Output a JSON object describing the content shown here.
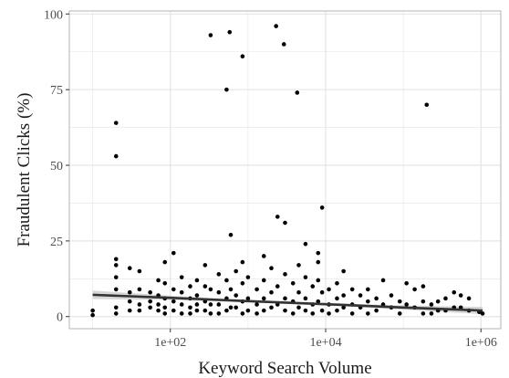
{
  "chart_data": {
    "type": "scatter",
    "title": "",
    "xlabel": "Keyword Search Volume",
    "ylabel": "Fraudulent Clicks (%)",
    "x_scale": "log10",
    "xlim": [
      5,
      1800000
    ],
    "ylim": [
      -4,
      101
    ],
    "x_ticks": [
      100,
      10000,
      1000000
    ],
    "x_tick_labels": [
      "1e+02",
      "1e+04",
      "1e+06"
    ],
    "y_ticks": [
      0,
      25,
      50,
      75,
      100
    ],
    "y_tick_labels": [
      "0",
      "25",
      "50",
      "75",
      "100"
    ],
    "grid": true,
    "legend": "none",
    "colors": {
      "points": "#000000",
      "trend": "#333333",
      "band": "#bdbdbd",
      "grid": "#e5e5e5",
      "panel_border": "#b3b3b3"
    },
    "series": [
      {
        "values": [
          {
            "x": 10,
            "y": 2
          },
          {
            "x": 10,
            "y": 0.5
          },
          {
            "x": 20,
            "y": 64
          },
          {
            "x": 20,
            "y": 53
          },
          {
            "x": 20,
            "y": 19
          },
          {
            "x": 20,
            "y": 17
          },
          {
            "x": 20,
            "y": 13
          },
          {
            "x": 20,
            "y": 9
          },
          {
            "x": 20,
            "y": 3
          },
          {
            "x": 20,
            "y": 1
          },
          {
            "x": 30,
            "y": 16
          },
          {
            "x": 30,
            "y": 8
          },
          {
            "x": 30,
            "y": 5
          },
          {
            "x": 30,
            "y": 2
          },
          {
            "x": 40,
            "y": 15
          },
          {
            "x": 40,
            "y": 9
          },
          {
            "x": 40,
            "y": 4
          },
          {
            "x": 40,
            "y": 2
          },
          {
            "x": 55,
            "y": 8
          },
          {
            "x": 55,
            "y": 5
          },
          {
            "x": 55,
            "y": 3
          },
          {
            "x": 70,
            "y": 12
          },
          {
            "x": 70,
            "y": 7
          },
          {
            "x": 70,
            "y": 4
          },
          {
            "x": 70,
            "y": 2
          },
          {
            "x": 85,
            "y": 18
          },
          {
            "x": 85,
            "y": 11
          },
          {
            "x": 85,
            "y": 6
          },
          {
            "x": 85,
            "y": 3
          },
          {
            "x": 85,
            "y": 1
          },
          {
            "x": 110,
            "y": 21
          },
          {
            "x": 110,
            "y": 9
          },
          {
            "x": 110,
            "y": 5
          },
          {
            "x": 110,
            "y": 2
          },
          {
            "x": 140,
            "y": 13
          },
          {
            "x": 140,
            "y": 8
          },
          {
            "x": 140,
            "y": 4
          },
          {
            "x": 140,
            "y": 1
          },
          {
            "x": 180,
            "y": 10
          },
          {
            "x": 180,
            "y": 6
          },
          {
            "x": 180,
            "y": 3
          },
          {
            "x": 180,
            "y": 1
          },
          {
            "x": 220,
            "y": 12
          },
          {
            "x": 220,
            "y": 7
          },
          {
            "x": 220,
            "y": 4
          },
          {
            "x": 220,
            "y": 2
          },
          {
            "x": 280,
            "y": 17
          },
          {
            "x": 280,
            "y": 10
          },
          {
            "x": 280,
            "y": 5
          },
          {
            "x": 280,
            "y": 2
          },
          {
            "x": 330,
            "y": 93
          },
          {
            "x": 330,
            "y": 9
          },
          {
            "x": 330,
            "y": 4
          },
          {
            "x": 330,
            "y": 1
          },
          {
            "x": 420,
            "y": 14
          },
          {
            "x": 420,
            "y": 8
          },
          {
            "x": 420,
            "y": 4
          },
          {
            "x": 420,
            "y": 1
          },
          {
            "x": 530,
            "y": 75
          },
          {
            "x": 530,
            "y": 12
          },
          {
            "x": 530,
            "y": 6
          },
          {
            "x": 530,
            "y": 2
          },
          {
            "x": 580,
            "y": 94
          },
          {
            "x": 600,
            "y": 27
          },
          {
            "x": 600,
            "y": 9
          },
          {
            "x": 600,
            "y": 3
          },
          {
            "x": 700,
            "y": 15
          },
          {
            "x": 700,
            "y": 7
          },
          {
            "x": 700,
            "y": 3
          },
          {
            "x": 850,
            "y": 86
          },
          {
            "x": 850,
            "y": 18
          },
          {
            "x": 850,
            "y": 11
          },
          {
            "x": 850,
            "y": 5
          },
          {
            "x": 850,
            "y": 1
          },
          {
            "x": 1000,
            "y": 13
          },
          {
            "x": 1000,
            "y": 6
          },
          {
            "x": 1000,
            "y": 2
          },
          {
            "x": 1300,
            "y": 9
          },
          {
            "x": 1300,
            "y": 4
          },
          {
            "x": 1300,
            "y": 1
          },
          {
            "x": 1600,
            "y": 20
          },
          {
            "x": 1600,
            "y": 12
          },
          {
            "x": 1600,
            "y": 6
          },
          {
            "x": 1600,
            "y": 2
          },
          {
            "x": 2000,
            "y": 16
          },
          {
            "x": 2000,
            "y": 8
          },
          {
            "x": 2000,
            "y": 3
          },
          {
            "x": 2300,
            "y": 96
          },
          {
            "x": 2400,
            "y": 33
          },
          {
            "x": 2400,
            "y": 10
          },
          {
            "x": 2400,
            "y": 4
          },
          {
            "x": 2900,
            "y": 90
          },
          {
            "x": 3000,
            "y": 31
          },
          {
            "x": 3000,
            "y": 14
          },
          {
            "x": 3000,
            "y": 6
          },
          {
            "x": 3000,
            "y": 2
          },
          {
            "x": 3800,
            "y": 11
          },
          {
            "x": 3800,
            "y": 5
          },
          {
            "x": 3800,
            "y": 1
          },
          {
            "x": 4300,
            "y": 74
          },
          {
            "x": 4500,
            "y": 17
          },
          {
            "x": 4500,
            "y": 8
          },
          {
            "x": 4500,
            "y": 3
          },
          {
            "x": 5500,
            "y": 24
          },
          {
            "x": 5500,
            "y": 13
          },
          {
            "x": 5500,
            "y": 6
          },
          {
            "x": 5500,
            "y": 2
          },
          {
            "x": 6800,
            "y": 10
          },
          {
            "x": 6800,
            "y": 4
          },
          {
            "x": 6800,
            "y": 1
          },
          {
            "x": 8000,
            "y": 21
          },
          {
            "x": 8000,
            "y": 18
          },
          {
            "x": 8000,
            "y": 12
          },
          {
            "x": 8000,
            "y": 5
          },
          {
            "x": 9000,
            "y": 36
          },
          {
            "x": 9000,
            "y": 8
          },
          {
            "x": 9000,
            "y": 2
          },
          {
            "x": 11000,
            "y": 9
          },
          {
            "x": 11000,
            "y": 4
          },
          {
            "x": 11000,
            "y": 1
          },
          {
            "x": 14000,
            "y": 11
          },
          {
            "x": 14000,
            "y": 6
          },
          {
            "x": 14000,
            "y": 2
          },
          {
            "x": 17000,
            "y": 15
          },
          {
            "x": 17000,
            "y": 7
          },
          {
            "x": 17000,
            "y": 3
          },
          {
            "x": 22000,
            "y": 9
          },
          {
            "x": 22000,
            "y": 4
          },
          {
            "x": 22000,
            "y": 1
          },
          {
            "x": 28000,
            "y": 7
          },
          {
            "x": 28000,
            "y": 3
          },
          {
            "x": 35000,
            "y": 9
          },
          {
            "x": 35000,
            "y": 5
          },
          {
            "x": 35000,
            "y": 1
          },
          {
            "x": 45000,
            "y": 6
          },
          {
            "x": 45000,
            "y": 2
          },
          {
            "x": 55000,
            "y": 12
          },
          {
            "x": 55000,
            "y": 4
          },
          {
            "x": 70000,
            "y": 7
          },
          {
            "x": 70000,
            "y": 3
          },
          {
            "x": 90000,
            "y": 5
          },
          {
            "x": 90000,
            "y": 1
          },
          {
            "x": 110000,
            "y": 11
          },
          {
            "x": 110000,
            "y": 4
          },
          {
            "x": 140000,
            "y": 9
          },
          {
            "x": 140000,
            "y": 3
          },
          {
            "x": 180000,
            "y": 10
          },
          {
            "x": 180000,
            "y": 5
          },
          {
            "x": 180000,
            "y": 1
          },
          {
            "x": 200000,
            "y": 70
          },
          {
            "x": 230000,
            "y": 4
          },
          {
            "x": 230000,
            "y": 1
          },
          {
            "x": 280000,
            "y": 5
          },
          {
            "x": 280000,
            "y": 2
          },
          {
            "x": 350000,
            "y": 6
          },
          {
            "x": 350000,
            "y": 2
          },
          {
            "x": 450000,
            "y": 8
          },
          {
            "x": 450000,
            "y": 3
          },
          {
            "x": 550000,
            "y": 7
          },
          {
            "x": 550000,
            "y": 3
          },
          {
            "x": 700000,
            "y": 6
          },
          {
            "x": 700000,
            "y": 2
          },
          {
            "x": 950000,
            "y": 1.5
          },
          {
            "x": 1050000,
            "y": 1
          }
        ]
      }
    ],
    "trend_line": {
      "x": [
        10,
        100,
        1000,
        10000,
        100000,
        1050000
      ],
      "y": [
        7.2,
        6.2,
        5.1,
        4.1,
        3.0,
        2.0
      ],
      "band_lower": [
        5.8,
        5.5,
        4.7,
        3.7,
        2.3,
        0.8
      ],
      "band_upper": [
        8.6,
        6.9,
        5.5,
        4.5,
        3.7,
        3.2
      ]
    }
  }
}
